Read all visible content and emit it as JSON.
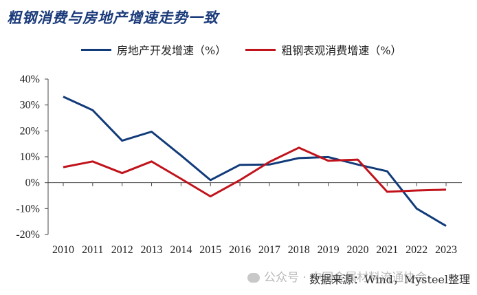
{
  "chart_data": {
    "type": "line",
    "title": "粗钢消费与房地产增速走势一致",
    "categories": [
      "2010",
      "2011",
      "2012",
      "2013",
      "2014",
      "2015",
      "2016",
      "2017",
      "2018",
      "2019",
      "2020",
      "2021",
      "2022",
      "2023"
    ],
    "series": [
      {
        "name": "房地产开发增速（%）",
        "color": "#123b7a",
        "values": [
          33.2,
          28.0,
          16.2,
          19.7,
          10.5,
          1.0,
          6.9,
          7.0,
          9.5,
          9.9,
          7.0,
          4.4,
          -10.0,
          -16.7
        ]
      },
      {
        "name": "粗钢表观消费增速（%）",
        "color": "#c0131b",
        "values": [
          6.0,
          8.2,
          3.7,
          8.2,
          1.5,
          -5.3,
          1.0,
          8.0,
          13.5,
          8.5,
          8.9,
          -3.5,
          -3.0,
          -2.7
        ]
      }
    ],
    "ylim": [
      -20,
      40
    ],
    "yticks": [
      "-20%",
      "-10%",
      "0%",
      "10%",
      "20%",
      "30%",
      "40%"
    ],
    "legend": "top"
  },
  "footer": {
    "source": "数据来源：Wind，Mysteel整理",
    "watermark": "公众号 · 中国金属材料流通协会"
  },
  "icons": {
    "watermark": "wechat-icon"
  }
}
